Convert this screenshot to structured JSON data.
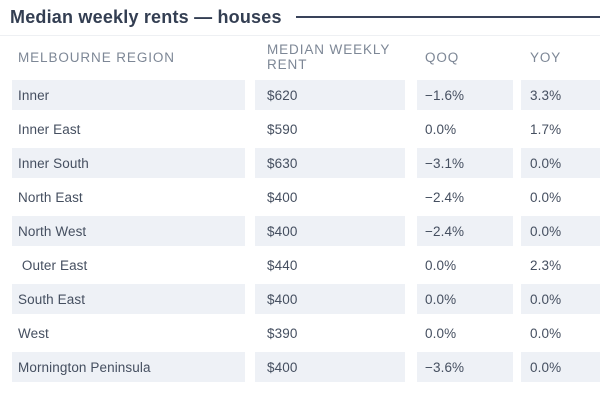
{
  "title": "Median weekly rents — houses",
  "colors": {
    "title_text": "#333e52",
    "title_rule": "#39435a",
    "header_text": "#7d8796",
    "cell_text": "#454f60",
    "row_stripe": "#eef1f6",
    "background": "#ffffff"
  },
  "chart_data": {
    "type": "table",
    "title": "Median weekly rents — houses",
    "columns": [
      "MELBOURNE REGION",
      "MEDIAN WEEKLY RENT",
      "QOQ",
      "YOY"
    ],
    "rows": [
      {
        "region": "Inner",
        "rent": "$620",
        "qoq": "−1.6%",
        "yoy": "3.3%"
      },
      {
        "region": "Inner East",
        "rent": "$590",
        "qoq": "0.0%",
        "yoy": "1.7%"
      },
      {
        "region": "Inner South",
        "rent": "$630",
        "qoq": "−3.1%",
        "yoy": "0.0%"
      },
      {
        "region": "North East",
        "rent": "$400",
        "qoq": "−2.4%",
        "yoy": "0.0%"
      },
      {
        "region": "North West",
        "rent": "$400",
        "qoq": "−2.4%",
        "yoy": "0.0%"
      },
      {
        "region": " Outer East",
        "rent": "$440",
        "qoq": "0.0%",
        "yoy": "2.3%"
      },
      {
        "region": "South East",
        "rent": "$400",
        "qoq": "0.0%",
        "yoy": "0.0%"
      },
      {
        "region": "West",
        "rent": "$390",
        "qoq": "0.0%",
        "yoy": "0.0%"
      },
      {
        "region": "Mornington Peninsula",
        "rent": "$400",
        "qoq": "−3.6%",
        "yoy": "0.0%"
      }
    ]
  }
}
